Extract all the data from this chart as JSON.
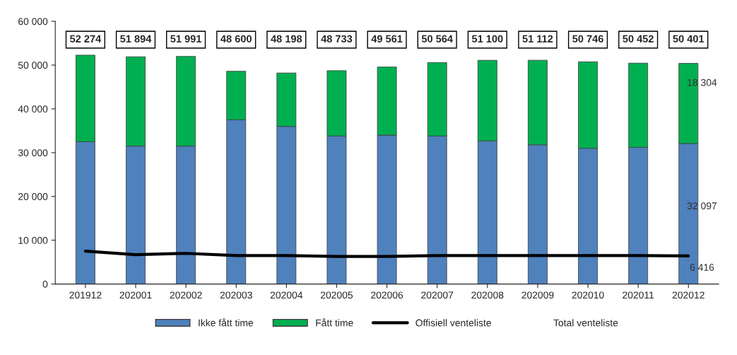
{
  "chart_data": {
    "type": "bar",
    "stacked": true,
    "categories": [
      "201912",
      "202001",
      "202002",
      "202003",
      "202004",
      "202005",
      "202006",
      "202007",
      "202008",
      "202009",
      "202010",
      "202011",
      "202012"
    ],
    "series": [
      {
        "name": "Ikke fått time",
        "color": "#4f81bd",
        "values": [
          32500,
          31500,
          31500,
          37500,
          36000,
          33800,
          34000,
          33800,
          32700,
          31800,
          31000,
          31200,
          32097
        ],
        "value_labels": [
          null,
          null,
          null,
          null,
          null,
          null,
          null,
          null,
          null,
          null,
          null,
          null,
          "32 097"
        ]
      },
      {
        "name": "Fått time",
        "color": "#00b050",
        "values": [
          19774,
          20394,
          20491,
          11100,
          12198,
          14933,
          15561,
          16764,
          18400,
          19312,
          19746,
          19252,
          18304
        ],
        "value_labels": [
          null,
          null,
          null,
          null,
          null,
          null,
          null,
          null,
          null,
          null,
          null,
          null,
          "18 304"
        ]
      },
      {
        "name": "Offisiell venteliste",
        "type": "line",
        "color": "#000000",
        "values": [
          7500,
          6700,
          7000,
          6500,
          6500,
          6300,
          6300,
          6500,
          6500,
          6500,
          6500,
          6500,
          6416
        ],
        "value_labels": [
          null,
          null,
          null,
          null,
          null,
          null,
          null,
          null,
          null,
          null,
          null,
          null,
          "6 416"
        ]
      }
    ],
    "totals": [
      "52 274",
      "51 894",
      "51 991",
      "48 600",
      "48 198",
      "48 733",
      "49 561",
      "50 564",
      "51 100",
      "51 112",
      "50 746",
      "50 452",
      "50 401"
    ],
    "annotations": [
      "Total venteliste"
    ],
    "ylim": [
      0,
      60000
    ],
    "yticks": [
      {
        "value": 0,
        "label": "0"
      },
      {
        "value": 10000,
        "label": "10 000"
      },
      {
        "value": 20000,
        "label": "20 000"
      },
      {
        "value": 30000,
        "label": "30 000"
      },
      {
        "value": 40000,
        "label": "40 000"
      },
      {
        "value": 50000,
        "label": "50 000"
      },
      {
        "value": 60000,
        "label": "60 000"
      }
    ],
    "grid": false,
    "legend": "bottom",
    "marker": "none",
    "line_style": "solid"
  }
}
